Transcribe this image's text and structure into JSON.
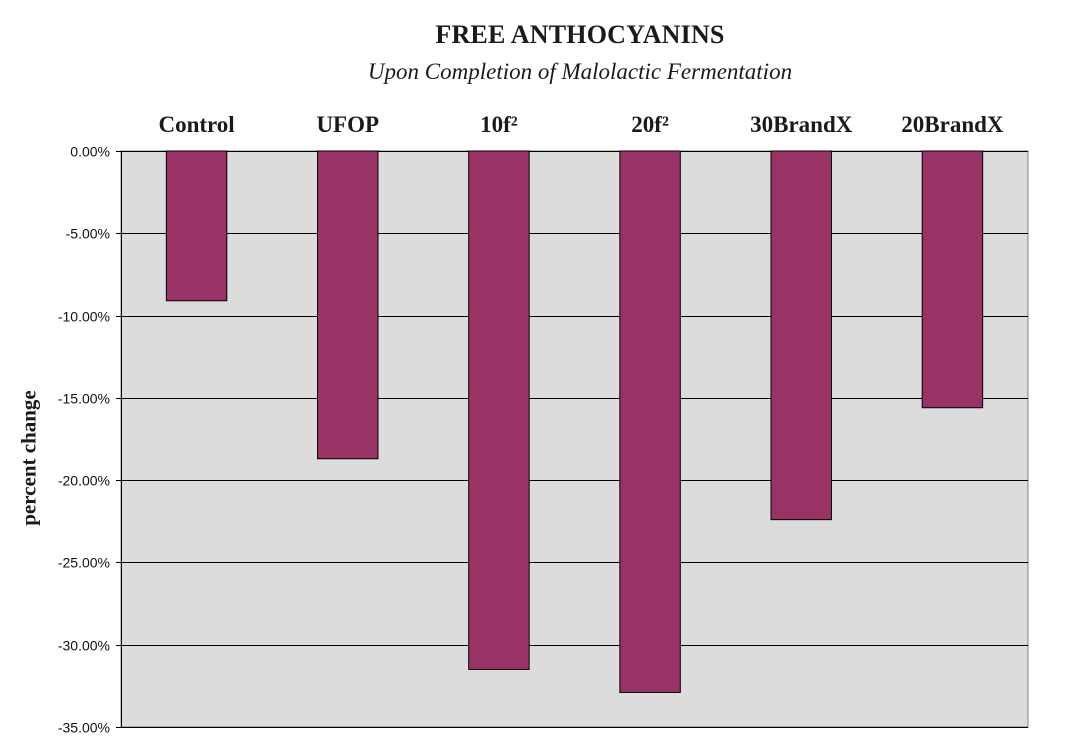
{
  "chart_data": {
    "type": "bar",
    "title": "FREE ANTHOCYANINS",
    "subtitle": "Upon Completion of Malolactic Fermentation",
    "xlabel": "",
    "ylabel": "percent change",
    "categories": [
      "Control",
      "UFOP",
      "10f²",
      "20f²",
      "30BrandX",
      "20BrandX"
    ],
    "values": [
      -9.1,
      -18.7,
      -31.5,
      -32.9,
      -22.4,
      -15.6
    ],
    "ylim": [
      -35,
      0
    ],
    "yticks": [
      0,
      -5,
      -10,
      -15,
      -20,
      -25,
      -30,
      -35
    ],
    "ytick_labels": [
      "0.00%",
      "-5.00%",
      "-10.00%",
      "-15.00%",
      "-20.00%",
      "-25.00%",
      "-30.00%",
      "-35.00%"
    ],
    "category_labels_position": "top",
    "grid": true,
    "legend": "none",
    "colors": {
      "bar": "#993366",
      "plot_background": "#dcdcdc",
      "grid": "#000000"
    }
  }
}
